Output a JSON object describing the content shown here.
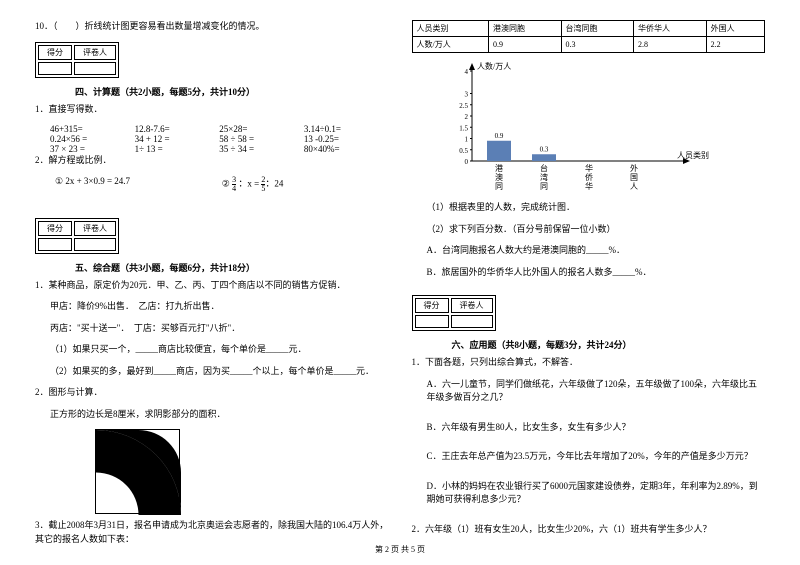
{
  "q10": "10．（　　）折线统计图更容易看出数量增减变化的情况。",
  "scoreLabels": {
    "score": "得分",
    "reviewer": "评卷人"
  },
  "section4": {
    "title": "四、计算题（共2小题，每题5分，共计10分）",
    "q1": "1．直接写得数．",
    "rows": [
      [
        "46+315=",
        "12.8-7.6=",
        "25×28=",
        "3.14÷0.1="
      ],
      [
        "0.24×56 =",
        "34 + 12 =",
        "58 ÷ 58 =",
        "13 -0.25="
      ],
      [
        "37 × 23 =",
        "1÷ 13 =",
        "35 ÷ 34 =",
        "80×40%="
      ]
    ],
    "q2": "2．解方程或比例．",
    "eq1": "① 2x + 3×0.9 = 24.7",
    "eq2_pre": "② ",
    "eq2_f1n": "3",
    "eq2_f1d": "4",
    "eq2_mid": " ：x = ",
    "eq2_f2n": "2",
    "eq2_f2d": "5",
    "eq2_post": "：24"
  },
  "section5": {
    "title": "五、综合题（共3小题，每题6分，共计18分）",
    "q1": "1．某种商品，原定价为20元．甲、乙、丙、丁四个商店以不同的销售方促销．",
    "q1a": "甲店：降价9%出售．　乙店：打九折出售．",
    "q1b": "丙店：\"买十送一\"．　丁店：买够百元打\"八折\"．",
    "q1c": "（1）如果只买一个，_____商店比较便宜，每个单价是_____元．",
    "q1d": "（2）如果买的多，最好到_____商店，因为买_____个以上，每个单价是_____元．",
    "q2": "2．图形与计算．",
    "q2a": "正方形的边长是8厘米，求阴影部分的面积．",
    "q3": "3．截止2008年3月31日，报名申请成为北京奥运会志愿者的，除我国大陆的106.4万人外，其它的报名人数如下表："
  },
  "dataTable": {
    "h1": "人员类别",
    "h2": "港澳同胞",
    "h3": "台湾同胞",
    "h4": "华侨华人",
    "h5": "外国人",
    "r1": "人数/万人",
    "v1": "0.9",
    "v2": "0.3",
    "v3": "2.8",
    "v4": "2.2"
  },
  "chart": {
    "ylabel": "人数/万人",
    "xlabel": "人员类别",
    "yticks": [
      "4",
      "3",
      "2.5",
      "2",
      "1.5",
      "1",
      "0.5",
      "0"
    ],
    "bars": [
      {
        "label": "港澳同胞",
        "value": 0.9,
        "show": "0.9"
      },
      {
        "label": "台湾同胞",
        "value": 0.3,
        "show": "0.3"
      },
      {
        "label": "华侨华人",
        "value": 0,
        "show": ""
      },
      {
        "label": "外国人",
        "value": 0,
        "show": ""
      }
    ],
    "barColor": "#5b7fb5",
    "maxY": 4
  },
  "section5b": {
    "a": "（1）根据表里的人数，完成统计图．",
    "b": "（2）求下列百分数．（百分号前保留一位小数）",
    "c": "A．台湾同胞报名人数大约是港澳同胞的_____%．",
    "d": "B．旅居国外的华侨华人比外国人的报名人数多_____%．"
  },
  "section6": {
    "title": "六、应用题（共8小题，每题3分，共计24分）",
    "q1": "1．下面各题，只列出综合算式，不解答．",
    "q1a": "A．六一儿童节，同学们做纸花，六年级做了120朵，五年级做了100朵，六年级比五年级多做百分之几？",
    "q1b": "B．六年级有男生80人，比女生多，女生有多少人？",
    "q1c": "C．王庄去年总产值为23.5万元，今年比去年增加了20%，今年的产值是多少万元？",
    "q1d": "D．小林的妈妈在农业银行买了6000元国家建设债券，定期3年，年利率为2.89%，到期她可获得利息多少元？",
    "q2": "2．六年级（1）班有女生20人，比女生少20%，六（1）班共有学生多少人？"
  },
  "footer": "第 2 页 共 5 页"
}
